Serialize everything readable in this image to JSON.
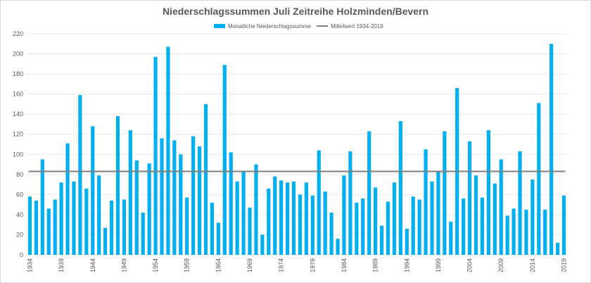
{
  "chart_data": {
    "type": "bar",
    "title": "Niederschlagssummen  Juli Zeitreihe Holzminden/Bevern",
    "xlabel": "",
    "ylabel": "",
    "ylim": [
      0,
      220
    ],
    "yticks": [
      0,
      20,
      40,
      60,
      80,
      100,
      120,
      140,
      160,
      180,
      200,
      220
    ],
    "xtick_labels": [
      "1934",
      "1939",
      "1944",
      "1949",
      "1954",
      "1959",
      "1964",
      "1969",
      "1974",
      "1979",
      "1984",
      "1989",
      "1994",
      "1999",
      "2004",
      "2009",
      "2014",
      "2019"
    ],
    "grid": true,
    "legend_position": "top",
    "colors": {
      "bars": "#00b0f0",
      "mean_line": "#7f7f7f"
    },
    "categories": [
      1934,
      1935,
      1936,
      1937,
      1938,
      1939,
      1940,
      1941,
      1942,
      1943,
      1944,
      1945,
      1946,
      1947,
      1948,
      1949,
      1950,
      1951,
      1952,
      1953,
      1954,
      1955,
      1956,
      1957,
      1958,
      1959,
      1960,
      1961,
      1962,
      1963,
      1964,
      1965,
      1966,
      1967,
      1968,
      1969,
      1970,
      1971,
      1972,
      1973,
      1974,
      1975,
      1976,
      1977,
      1978,
      1979,
      1980,
      1981,
      1982,
      1983,
      1984,
      1985,
      1986,
      1987,
      1988,
      1989,
      1990,
      1991,
      1992,
      1993,
      1994,
      1995,
      1996,
      1997,
      1998,
      1999,
      2000,
      2001,
      2002,
      2003,
      2004,
      2005,
      2006,
      2007,
      2008,
      2009,
      2010,
      2011,
      2012,
      2013,
      2014,
      2015,
      2016,
      2017,
      2018,
      2019
    ],
    "series": [
      {
        "name": "Monatliche Niederschlagssumme",
        "type": "bar",
        "values": [
          58,
          54,
          95,
          46,
          55,
          72,
          111,
          73,
          159,
          66,
          128,
          79,
          27,
          54,
          138,
          55,
          124,
          94,
          42,
          91,
          197,
          116,
          207,
          114,
          100,
          57,
          118,
          108,
          150,
          52,
          32,
          189,
          102,
          73,
          83,
          47,
          90,
          20,
          66,
          78,
          74,
          72,
          73,
          60,
          72,
          59,
          104,
          63,
          42,
          16,
          79,
          103,
          52,
          56,
          123,
          67,
          29,
          53,
          72,
          133,
          26,
          58,
          55,
          105,
          73,
          83,
          123,
          33,
          166,
          56,
          113,
          79,
          57,
          124,
          71,
          95,
          39,
          46,
          103,
          45,
          75,
          151,
          45,
          210,
          12,
          59
        ]
      },
      {
        "name": "Mittelwert 1934-2019",
        "type": "line",
        "value": 83
      }
    ]
  }
}
